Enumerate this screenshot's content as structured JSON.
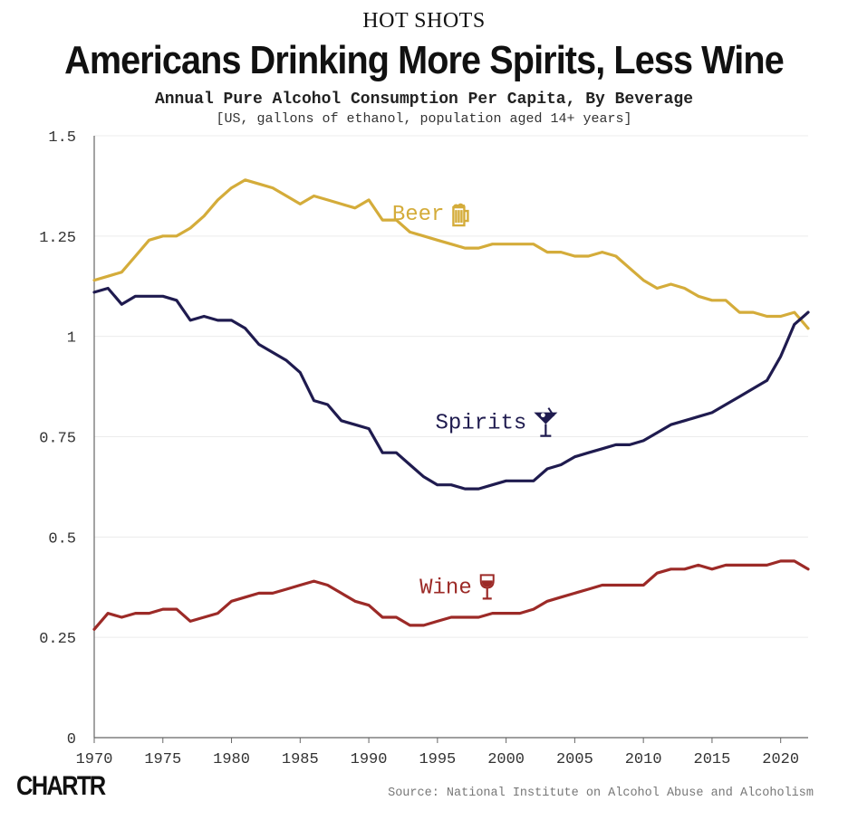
{
  "header": {
    "kicker": "HOT SHOTS",
    "title": "Americans Drinking More Spirits, Less Wine",
    "subtitle": "Annual Pure Alcohol Consumption Per Capita, By Beverage",
    "note": "[US, gallons of ethanol, population aged 14+ years]"
  },
  "footer": {
    "logo": "CHARTR",
    "source": "Source: National Institute on Alcohol Abuse and Alcoholism"
  },
  "chart_data": {
    "type": "line",
    "title": "Americans Drinking More Spirits, Less Wine",
    "xlabel": "",
    "ylabel": "",
    "xlim": [
      1970,
      2022
    ],
    "ylim": [
      0,
      1.5
    ],
    "grid": true,
    "legend": "inline labels",
    "x_ticks": [
      1970,
      1975,
      1980,
      1985,
      1990,
      1995,
      2000,
      2005,
      2010,
      2015,
      2020
    ],
    "y_ticks": [
      {
        "value": 0,
        "label": "0"
      },
      {
        "value": 0.25,
        "label": "0.25"
      },
      {
        "value": 0.5,
        "label": "0.5"
      },
      {
        "value": 0.75,
        "label": "0.75"
      },
      {
        "value": 1,
        "label": "1"
      },
      {
        "value": 1.25,
        "label": "1.25"
      },
      {
        "value": 1.5,
        "label": "1.5"
      }
    ],
    "x": [
      1970,
      1971,
      1972,
      1973,
      1974,
      1975,
      1976,
      1977,
      1978,
      1979,
      1980,
      1981,
      1982,
      1983,
      1984,
      1985,
      1986,
      1987,
      1988,
      1989,
      1990,
      1991,
      1992,
      1993,
      1994,
      1995,
      1996,
      1997,
      1998,
      1999,
      2000,
      2001,
      2002,
      2003,
      2004,
      2005,
      2006,
      2007,
      2008,
      2009,
      2010,
      2011,
      2012,
      2013,
      2014,
      2015,
      2016,
      2017,
      2018,
      2019,
      2020,
      2021,
      2022
    ],
    "series": [
      {
        "name": "Beer",
        "color": "#d4ac3a",
        "icon": "beer-mug-icon",
        "values": [
          1.14,
          1.15,
          1.16,
          1.2,
          1.24,
          1.25,
          1.25,
          1.27,
          1.3,
          1.34,
          1.37,
          1.39,
          1.38,
          1.37,
          1.35,
          1.33,
          1.35,
          1.34,
          1.33,
          1.32,
          1.34,
          1.29,
          1.29,
          1.26,
          1.25,
          1.24,
          1.23,
          1.22,
          1.22,
          1.23,
          1.23,
          1.23,
          1.23,
          1.21,
          1.21,
          1.2,
          1.2,
          1.21,
          1.2,
          1.17,
          1.14,
          1.12,
          1.13,
          1.12,
          1.1,
          1.09,
          1.09,
          1.06,
          1.06,
          1.05,
          1.05,
          1.06,
          1.02
        ]
      },
      {
        "name": "Spirits",
        "color": "#1f1b4f",
        "icon": "martini-glass-icon",
        "values": [
          1.11,
          1.12,
          1.08,
          1.1,
          1.1,
          1.1,
          1.09,
          1.04,
          1.05,
          1.04,
          1.04,
          1.02,
          0.98,
          0.96,
          0.94,
          0.91,
          0.84,
          0.83,
          0.79,
          0.78,
          0.77,
          0.71,
          0.71,
          0.68,
          0.65,
          0.63,
          0.63,
          0.62,
          0.62,
          0.63,
          0.64,
          0.64,
          0.64,
          0.67,
          0.68,
          0.7,
          0.71,
          0.72,
          0.73,
          0.73,
          0.74,
          0.76,
          0.78,
          0.79,
          0.8,
          0.81,
          0.83,
          0.85,
          0.87,
          0.89,
          0.95,
          1.03,
          1.06
        ]
      },
      {
        "name": "Wine",
        "color": "#9c2a27",
        "icon": "wine-glass-icon",
        "values": [
          0.27,
          0.31,
          0.3,
          0.31,
          0.31,
          0.32,
          0.32,
          0.29,
          0.3,
          0.31,
          0.34,
          0.35,
          0.36,
          0.36,
          0.37,
          0.38,
          0.39,
          0.38,
          0.36,
          0.34,
          0.33,
          0.3,
          0.3,
          0.28,
          0.28,
          0.29,
          0.3,
          0.3,
          0.3,
          0.31,
          0.31,
          0.31,
          0.32,
          0.34,
          0.35,
          0.36,
          0.37,
          0.38,
          0.38,
          0.38,
          0.38,
          0.41,
          0.42,
          0.42,
          0.43,
          0.42,
          0.43,
          0.43,
          0.43,
          0.43,
          0.44,
          0.44,
          0.42
        ]
      }
    ]
  }
}
